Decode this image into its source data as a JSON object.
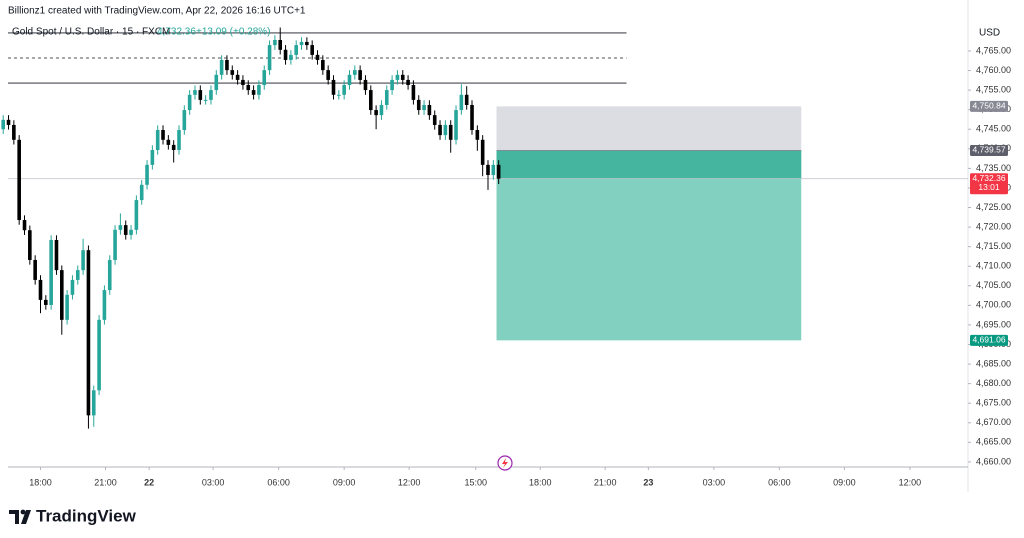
{
  "chart_data": {
    "type": "candlestick",
    "credit": "Billionz1 created with TradingView.com, Apr 22, 2026 16:16 UTC+1",
    "title": "Gold Spot / U.S. Dollar · 15 · FXCM",
    "last_price_text": "4,732.36",
    "change_text": "+13.09 (+0.28%)",
    "y_axis_label": "USD",
    "brand": "TradingView",
    "up_color": "#26a69a",
    "down_color": "#000000",
    "grid": false,
    "open": [
      4745.0,
      4747.4,
      4746.1,
      4742.3,
      4721.8,
      4719.2,
      4711.6,
      4706.5,
      4701.4,
      4700.1,
      4716.7,
      4709.0,
      4696.3,
      4702.7,
      4706.5,
      4709.0,
      4714.1,
      4671.9,
      4678.3,
      4696.3,
      4703.9,
      4711.6,
      4719.3,
      4720.5,
      4718.0,
      4719.3,
      4726.9,
      4730.8,
      4735.9,
      4739.7,
      4744.8,
      4742.3,
      4741.0,
      4739.7,
      4744.8,
      4749.9,
      4753.8,
      4755.0,
      4752.5,
      4752.5,
      4755.0,
      4758.9,
      4762.7,
      4760.1,
      4758.9,
      4757.6,
      4756.3,
      4755.0,
      4753.8,
      4756.3,
      4760.1,
      4766.5,
      4767.8,
      4765.3,
      4762.7,
      4764.0,
      4766.5,
      4767.3,
      4766.5,
      4764.0,
      4762.7,
      4760.1,
      4757.6,
      4753.8,
      4753.8,
      4756.3,
      4758.9,
      4760.1,
      4757.6,
      4755.0,
      4749.9,
      4748.6,
      4751.2,
      4755.0,
      4757.6,
      4758.9,
      4757.6,
      4756.3,
      4752.5,
      4749.9,
      4751.2,
      4748.6,
      4746.1,
      4743.5,
      4746.1,
      4742.3,
      4749.9,
      4753.8,
      4751.2,
      4744.8,
      4742.3,
      4735.9,
      4733.3,
      4735.9
    ],
    "high": [
      4748.6,
      4748.6,
      4747.3,
      4743.5,
      4723.0,
      4720.4,
      4712.8,
      4707.7,
      4702.6,
      4717.9,
      4717.9,
      4710.2,
      4703.9,
      4707.7,
      4710.2,
      4717.0,
      4715.3,
      4679.5,
      4697.5,
      4705.1,
      4712.8,
      4720.5,
      4723.5,
      4721.7,
      4720.5,
      4728.1,
      4732.0,
      4737.1,
      4740.9,
      4746.0,
      4746.0,
      4743.5,
      4742.2,
      4746.0,
      4751.1,
      4755.0,
      4756.2,
      4756.2,
      4753.7,
      4756.2,
      4760.1,
      4763.9,
      4763.9,
      4761.3,
      4760.1,
      4758.8,
      4757.5,
      4756.2,
      4757.5,
      4761.3,
      4767.7,
      4769.0,
      4771.0,
      4766.5,
      4765.2,
      4767.7,
      4768.5,
      4768.5,
      4767.7,
      4765.2,
      4763.9,
      4761.3,
      4758.8,
      4755.0,
      4757.5,
      4760.1,
      4761.3,
      4761.3,
      4758.8,
      4756.2,
      4751.1,
      4752.4,
      4756.2,
      4758.8,
      4760.1,
      4760.1,
      4758.8,
      4757.5,
      4753.7,
      4752.4,
      4752.4,
      4749.8,
      4747.3,
      4747.3,
      4747.3,
      4751.1,
      4756.5,
      4756.0,
      4752.4,
      4746.0,
      4743.5,
      4737.1,
      4737.1,
      4737.1
    ],
    "low": [
      4743.8,
      4744.9,
      4741.1,
      4720.6,
      4718.0,
      4710.4,
      4705.3,
      4698.0,
      4698.9,
      4698.9,
      4707.8,
      4692.5,
      4695.1,
      4701.5,
      4705.3,
      4707.8,
      4668.5,
      4669.0,
      4677.1,
      4695.1,
      4702.7,
      4710.4,
      4718.1,
      4716.8,
      4716.8,
      4718.1,
      4725.7,
      4729.6,
      4734.7,
      4738.5,
      4741.1,
      4739.8,
      4736.5,
      4738.5,
      4743.6,
      4748.7,
      4752.6,
      4751.3,
      4751.3,
      4751.3,
      4753.8,
      4757.7,
      4758.9,
      4757.7,
      4756.4,
      4755.1,
      4753.8,
      4752.6,
      4752.6,
      4755.1,
      4758.9,
      4765.3,
      4764.1,
      4761.5,
      4761.5,
      4762.8,
      4765.3,
      4765.3,
      4762.8,
      4761.5,
      4758.9,
      4756.4,
      4752.6,
      4752.6,
      4752.6,
      4755.1,
      4757.7,
      4756.4,
      4753.8,
      4748.7,
      4745.0,
      4747.4,
      4750.0,
      4753.8,
      4756.4,
      4756.4,
      4755.1,
      4751.3,
      4748.7,
      4748.7,
      4747.4,
      4744.9,
      4742.3,
      4742.3,
      4739.0,
      4741.1,
      4748.7,
      4750.0,
      4743.6,
      4739.5,
      4733.0,
      4729.5,
      4732.1,
      4731.0
    ],
    "close": [
      4747.4,
      4746.1,
      4742.3,
      4721.8,
      4719.2,
      4711.6,
      4706.5,
      4701.4,
      4700.1,
      4716.7,
      4709.0,
      4696.3,
      4702.7,
      4706.5,
      4709.0,
      4714.1,
      4671.9,
      4678.3,
      4696.3,
      4703.9,
      4711.6,
      4719.3,
      4720.5,
      4718.0,
      4719.3,
      4726.9,
      4730.8,
      4735.9,
      4739.7,
      4744.8,
      4742.3,
      4741.0,
      4739.7,
      4744.8,
      4749.9,
      4753.8,
      4755.0,
      4752.5,
      4752.5,
      4755.0,
      4758.9,
      4762.7,
      4760.1,
      4758.9,
      4757.6,
      4756.3,
      4755.0,
      4753.8,
      4756.3,
      4760.1,
      4766.5,
      4767.8,
      4765.3,
      4762.7,
      4764.0,
      4766.5,
      4767.3,
      4766.5,
      4764.0,
      4762.7,
      4760.1,
      4757.6,
      4753.8,
      4753.8,
      4756.3,
      4758.9,
      4760.1,
      4757.6,
      4755.0,
      4749.9,
      4748.6,
      4751.2,
      4755.0,
      4757.6,
      4758.9,
      4757.6,
      4756.3,
      4752.5,
      4749.9,
      4751.2,
      4748.6,
      4746.1,
      4743.5,
      4746.1,
      4742.3,
      4749.9,
      4753.8,
      4751.2,
      4744.8,
      4742.3,
      4735.9,
      4733.3,
      4735.9,
      4732.36
    ],
    "xlim": [
      -0.6,
      181.1
    ],
    "xticks": [
      {
        "value": 7,
        "label": "18:00"
      },
      {
        "value": 19.2,
        "label": "21:00"
      },
      {
        "value": 27.4,
        "label": "22"
      },
      {
        "value": 39.4,
        "label": "03:00"
      },
      {
        "value": 51.7,
        "label": "06:00"
      },
      {
        "value": 64.0,
        "label": "09:00"
      },
      {
        "value": 76.2,
        "label": "12:00"
      },
      {
        "value": 88.7,
        "label": "15:00"
      },
      {
        "value": 100.8,
        "label": "18:00"
      },
      {
        "value": 113.0,
        "label": "21:00"
      },
      {
        "value": 121.1,
        "label": "23"
      },
      {
        "value": 133.4,
        "label": "03:00"
      },
      {
        "value": 145.7,
        "label": "06:00"
      },
      {
        "value": 157.9,
        "label": "09:00"
      },
      {
        "value": 170.2,
        "label": "12:00"
      }
    ],
    "ylim": [
      4658.7,
      4772.4
    ],
    "yticks": [
      {
        "value": 4660,
        "label": "4,660.00"
      },
      {
        "value": 4665,
        "label": "4,665.00"
      },
      {
        "value": 4670,
        "label": "4,670.00"
      },
      {
        "value": 4675,
        "label": "4,675.00"
      },
      {
        "value": 4680,
        "label": "4,680.00"
      },
      {
        "value": 4685,
        "label": "4,685.00"
      },
      {
        "value": 4690,
        "label": "4,690.00"
      },
      {
        "value": 4695,
        "label": "4,695.00"
      },
      {
        "value": 4700,
        "label": "4,700.00"
      },
      {
        "value": 4705,
        "label": "4,705.00"
      },
      {
        "value": 4710,
        "label": "4,710.00"
      },
      {
        "value": 4715,
        "label": "4,715.00"
      },
      {
        "value": 4720,
        "label": "4,720.00"
      },
      {
        "value": 4725,
        "label": "4,725.00"
      },
      {
        "value": 4730,
        "label": "4,730.00"
      },
      {
        "value": 4735,
        "label": "4,735.00"
      },
      {
        "value": 4740,
        "label": "4,740.00"
      },
      {
        "value": 4745,
        "label": "4,745.00"
      },
      {
        "value": 4750,
        "label": "4,750.00"
      },
      {
        "value": 4755,
        "label": "4,755.00"
      },
      {
        "value": 4760,
        "label": "4,760.00"
      },
      {
        "value": 4765,
        "label": "4,765.00"
      }
    ],
    "levels": [
      {
        "price": 4769.6,
        "dashed": false,
        "end": 117
      },
      {
        "price": 4763.2,
        "dashed": true,
        "end": 117
      },
      {
        "price": 4756.8,
        "dashed": false,
        "end": 117
      }
    ],
    "last_price": {
      "value": 4732.36,
      "label": "4,732.36",
      "countdown": "13:01",
      "color": "#f23645"
    },
    "position": {
      "start": 92.6,
      "end": 149.8,
      "stop": {
        "value": 4750.84,
        "label": "4,750.84"
      },
      "entry": {
        "value": 4739.57,
        "label": "4,739.57"
      },
      "target": {
        "value": 4691.06,
        "label": "4,691.06"
      }
    }
  }
}
